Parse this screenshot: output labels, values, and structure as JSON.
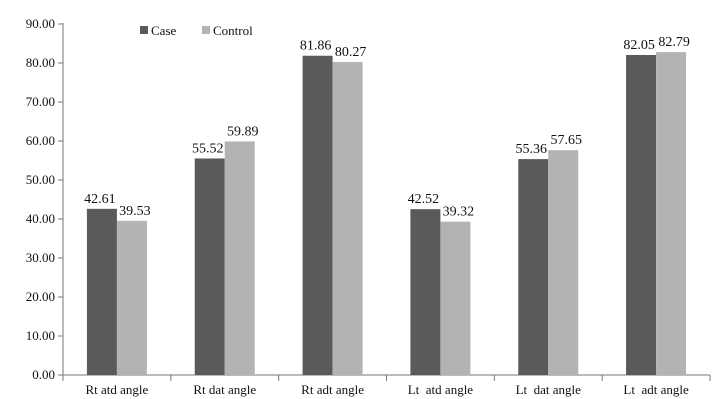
{
  "chart_data": {
    "type": "bar",
    "categories": [
      "Rt atd angle",
      "Rt dat angle",
      "Rt adt angle",
      "Lt  atd angle",
      "Lt  dat angle",
      "Lt  adt angle"
    ],
    "series": [
      {
        "name": "Case",
        "values": [
          42.61,
          55.52,
          81.86,
          42.52,
          55.36,
          82.05
        ],
        "labels": [
          "42.61",
          "55.52",
          "81.86",
          "42.52",
          "55.36",
          "82.05"
        ],
        "color": "#5a5a5a"
      },
      {
        "name": "Control",
        "values": [
          39.53,
          59.89,
          80.27,
          39.32,
          57.65,
          82.79
        ],
        "labels": [
          "39.53",
          "59.89",
          "80.27",
          "39.32",
          "57.65",
          "82.79"
        ],
        "color": "#b3b3b3"
      }
    ],
    "yticks": [
      "0.00",
      "10.00",
      "20.00",
      "30.00",
      "40.00",
      "50.00",
      "60.00",
      "70.00",
      "80.00",
      "90.00"
    ],
    "ylim": [
      0,
      90
    ],
    "title": "",
    "xlabel": "",
    "ylabel": "",
    "grid": false,
    "legend": "top-left"
  }
}
